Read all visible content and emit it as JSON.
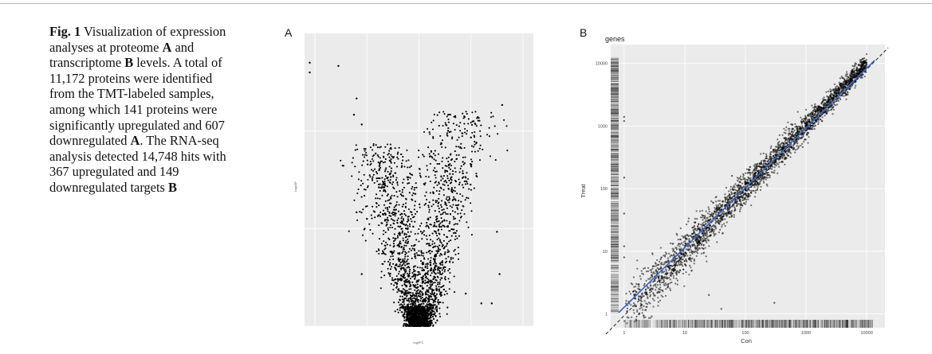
{
  "caption": {
    "label": "Fig. 1",
    "parts": [
      {
        "t": "  Visualization of expression analyses at pro­teome ",
        "b": false
      },
      {
        "t": "A",
        "b": true
      },
      {
        "t": " and transcriptome ",
        "b": false
      },
      {
        "t": "B",
        "b": true
      },
      {
        "t": " levels. A total of 11,172 proteins were identified from the TMT-labeled samples, among which 141 proteins were significantly upregulated and 607 down­regulated ",
        "b": false
      },
      {
        "t": "A",
        "b": true
      },
      {
        "t": ". The RNA-seq analysis detected 14,748 hits with 367 upregulated and 149 downregulated targets ",
        "b": false
      },
      {
        "t": "B",
        "b": true
      }
    ]
  },
  "panels": {
    "a_label": "A",
    "b_label": "B"
  },
  "chart_data": [
    {
      "type": "scatter",
      "title": "",
      "xlabel": "log2FC",
      "ylabel": "-log10P",
      "xlim": [
        -2.2,
        2.2
      ],
      "ylim": [
        0,
        9
      ],
      "grid": true,
      "series": [
        {
          "description": "volcano plot of proteins",
          "shape": "V",
          "points_upregulated": 141,
          "points_downregulated": 607,
          "total_proteins": 11172
        }
      ],
      "outliers": [
        [
          -2.1,
          8.1
        ],
        [
          -2.1,
          7.8
        ],
        [
          -1.55,
          8.0
        ],
        [
          -1.2,
          7.0
        ],
        [
          -1.25,
          6.5
        ],
        [
          -1.1,
          6.2
        ],
        [
          1.05,
          6.3
        ],
        [
          1.15,
          6.4
        ],
        [
          1.0,
          5.8
        ],
        [
          1.6,
          6.8
        ],
        [
          1.5,
          2.9
        ],
        [
          1.55,
          1.6
        ],
        [
          1.2,
          0.7
        ],
        [
          1.4,
          0.7
        ],
        [
          -1.1,
          1.6
        ],
        [
          -1.0,
          3.3
        ],
        [
          -1.2,
          3.5
        ],
        [
          0.9,
          1.0
        ]
      ]
    },
    {
      "type": "scatter",
      "title": "genes",
      "xlabel": "Con",
      "ylabel": "Treat",
      "x_scale": "log",
      "y_scale": "log",
      "xlim": [
        1,
        10000
      ],
      "ylim": [
        1,
        10000
      ],
      "xticks": [
        "1",
        "10",
        "100",
        "1000",
        "10000"
      ],
      "yticks": [
        "1",
        "10",
        "100",
        "1000",
        "10000"
      ],
      "grid": true,
      "reference_line": "diagonal dashed y = x",
      "fit_line_color": "#3a66c8",
      "total_hits": 14748,
      "upregulated": 367,
      "downregulated": 149
    }
  ]
}
